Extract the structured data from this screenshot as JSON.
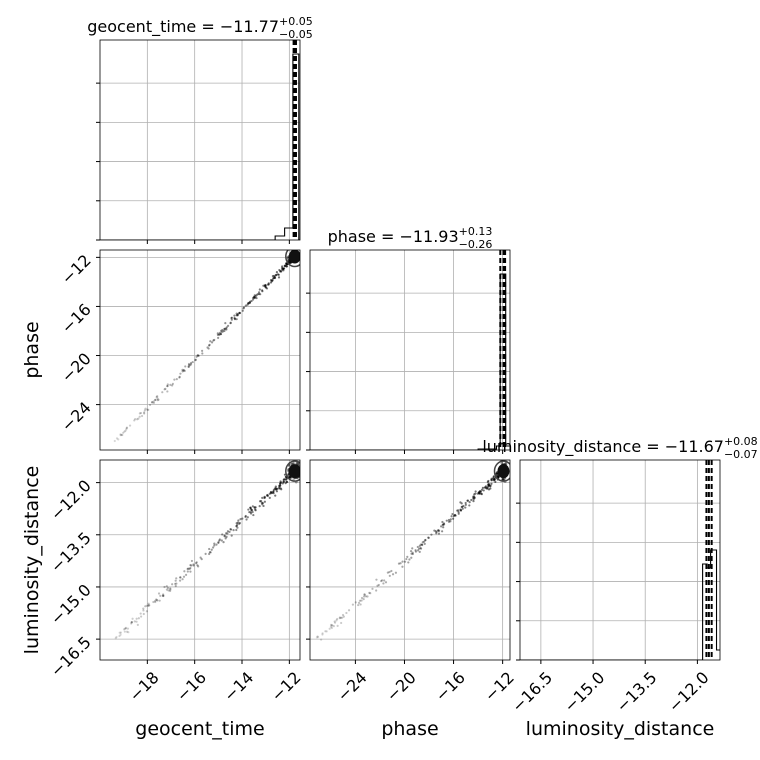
{
  "chart_data": {
    "type": "corner",
    "parameters": [
      "geocent_time",
      "phase",
      "luminosity_distance"
    ],
    "titles": [
      {
        "name": "geocent_time",
        "median": "−11.77",
        "plus": "+0.05",
        "minus": "−0.05"
      },
      {
        "name": "phase",
        "median": "−11.93",
        "plus": "+0.13",
        "minus": "−0.26"
      },
      {
        "name": "luminosity_distance",
        "median": "−11.67",
        "plus": "+0.08",
        "minus": "−0.07"
      }
    ],
    "ranges": {
      "geocent_time": [
        -20.0,
        -11.55
      ],
      "phase": [
        -27.7,
        -11.4
      ],
      "luminosity_distance": [
        -17.1,
        -11.35
      ]
    },
    "tick_labels": {
      "geocent_time": [
        "−18",
        "−16",
        "−14",
        "−12"
      ],
      "phase": [
        "−24",
        "−20",
        "−16",
        "−12"
      ],
      "luminosity_distance": [
        "−16.5",
        "−15.0",
        "−13.5",
        "−12.0"
      ]
    },
    "tick_values": {
      "geocent_time": [
        -18,
        -16,
        -14,
        -12
      ],
      "phase": [
        -24,
        -20,
        -16,
        -12
      ],
      "luminosity_distance": [
        -16.5,
        -15.0,
        -13.5,
        -12.0
      ]
    },
    "quantiles": {
      "geocent_time": [
        -11.82,
        -11.77,
        -11.72
      ],
      "phase": [
        -12.19,
        -11.93,
        -11.8
      ],
      "luminosity_distance": [
        -11.74,
        -11.67,
        -11.59
      ]
    },
    "histograms": {
      "geocent_time": {
        "edges": [
          -13.0,
          -12.6,
          -12.2,
          -11.85,
          -11.6,
          -11.55
        ],
        "counts": [
          0.0,
          0.02,
          0.06,
          0.93,
          0.0
        ]
      },
      "phase": {
        "edges": [
          -16.0,
          -14.0,
          -12.5,
          -12.2,
          -11.75,
          -11.5
        ],
        "counts": [
          0.0,
          0.005,
          0.02,
          0.88,
          0.02
        ]
      },
      "luminosity_distance": {
        "edges": [
          -12.1,
          -11.85,
          -11.72,
          -11.62,
          -11.45,
          -11.35
        ],
        "counts": [
          0.0,
          0.48,
          0.46,
          0.55,
          0.05
        ]
      }
    },
    "grid": true,
    "legend": "none"
  }
}
